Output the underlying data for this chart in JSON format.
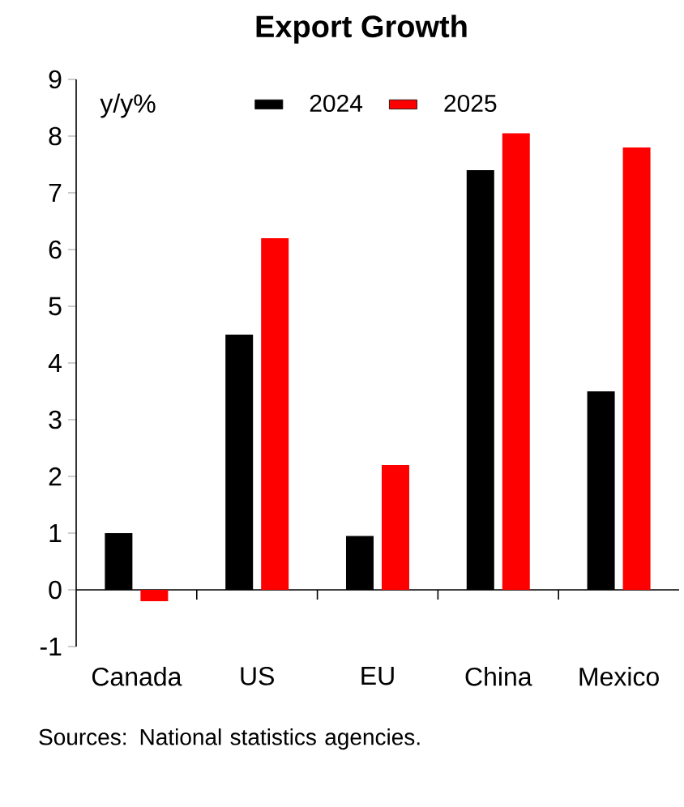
{
  "chart_data": {
    "type": "bar",
    "title": "Export Growth",
    "ylabel": "y/y%",
    "categories": [
      "Canada",
      "US",
      "EU",
      "China",
      "Mexico"
    ],
    "series": [
      {
        "name": "2024",
        "color": "#000000",
        "values": [
          1.0,
          4.5,
          0.95,
          7.4,
          3.5
        ]
      },
      {
        "name": "2025",
        "color": "#ff0000",
        "values": [
          -0.2,
          6.2,
          2.2,
          8.05,
          7.8
        ]
      }
    ],
    "ylim": [
      -1,
      9
    ],
    "yticks": [
      -1,
      0,
      1,
      2,
      3,
      4,
      5,
      6,
      7,
      8,
      9
    ],
    "legend": "top",
    "annotations": [
      "Sources: National statistics agencies."
    ]
  }
}
